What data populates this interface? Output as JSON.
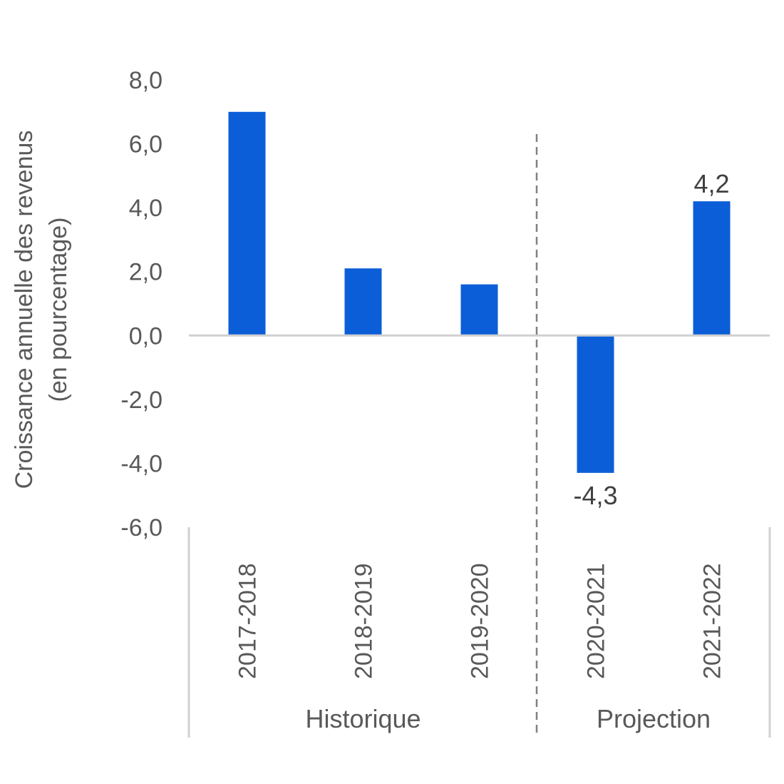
{
  "chart_data": {
    "type": "bar",
    "title": "",
    "ylabel_lines": [
      "Croissance annuelle des revenus",
      "(en pourcentage)"
    ],
    "categories": [
      "2017-2018",
      "2018-2019",
      "2019-2020",
      "2020-2021",
      "2021-2022"
    ],
    "values": [
      7.0,
      2.1,
      1.6,
      -4.3,
      4.2
    ],
    "data_labels": [
      "",
      "",
      "",
      "-4,3",
      "4,2"
    ],
    "ylim": [
      -6,
      8
    ],
    "yticks": [
      8,
      6,
      4,
      2,
      0,
      -2,
      -4,
      -6
    ],
    "ytick_labels": [
      "8,0",
      "6,0",
      "4,0",
      "2,0",
      "0,0",
      "-2,0",
      "-4,0",
      "-6,0"
    ],
    "groups": [
      {
        "label": "Historique",
        "categories": [
          "2017-2018",
          "2018-2019",
          "2019-2020"
        ]
      },
      {
        "label": "Projection",
        "categories": [
          "2020-2021",
          "2021-2022"
        ]
      }
    ],
    "bar_color": "#0B5ED7",
    "grid": false,
    "legend": "none"
  }
}
